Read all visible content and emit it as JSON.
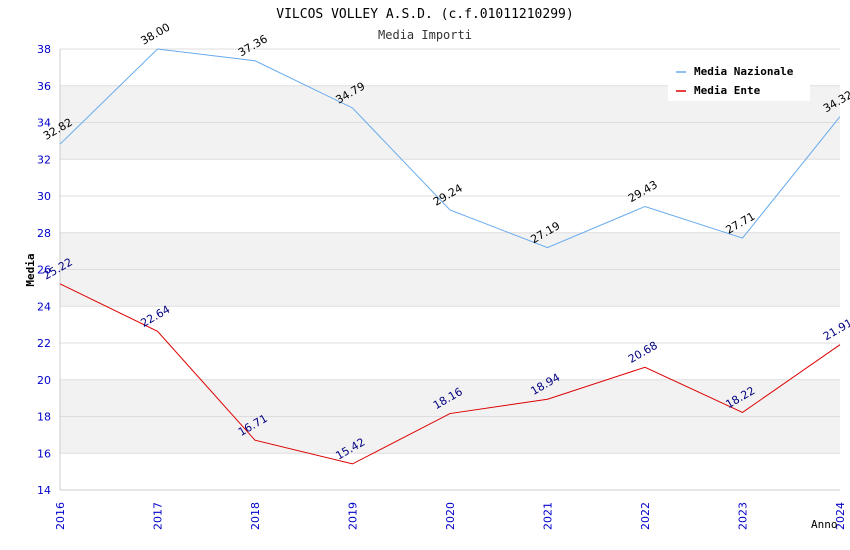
{
  "chart_data": {
    "type": "line",
    "title": "VILCOS VOLLEY A.S.D. (c.f.01011210299)",
    "subtitle": "Media Importi",
    "xlabel": "Anno",
    "ylabel": "Media",
    "categories": [
      "2016",
      "2017",
      "2018",
      "2019",
      "2020",
      "2021",
      "2022",
      "2023",
      "2024"
    ],
    "ylim": [
      14,
      38
    ],
    "yticks": [
      14,
      16,
      18,
      20,
      22,
      24,
      26,
      28,
      30,
      32,
      34,
      36,
      38
    ],
    "grid": true,
    "legend_position": "top-right",
    "series": [
      {
        "name": "Media Nazionale",
        "color": "#66aaee",
        "label_color": "#000000",
        "values": [
          32.82,
          38.0,
          37.36,
          34.79,
          29.24,
          27.19,
          29.43,
          27.71,
          34.32
        ],
        "labels": [
          "32.82",
          "38.00",
          "37.36",
          "34.79",
          "29.24",
          "27.19",
          "29.43",
          "27.71",
          "34.32"
        ]
      },
      {
        "name": "Media Ente",
        "color": "#dd0000",
        "label_color": "#000080",
        "values": [
          25.22,
          22.64,
          16.71,
          15.42,
          18.16,
          18.94,
          20.68,
          18.22,
          21.91
        ],
        "labels": [
          "25.22",
          "22.64",
          "16.71",
          "15.42",
          "18.16",
          "18.94",
          "20.68",
          "18.22",
          "21.91"
        ]
      }
    ],
    "colors": {
      "tick_label": "#0000cc",
      "band": "#f2f2f2",
      "gridline": "#dddddd",
      "axis": "#cccccc"
    }
  }
}
